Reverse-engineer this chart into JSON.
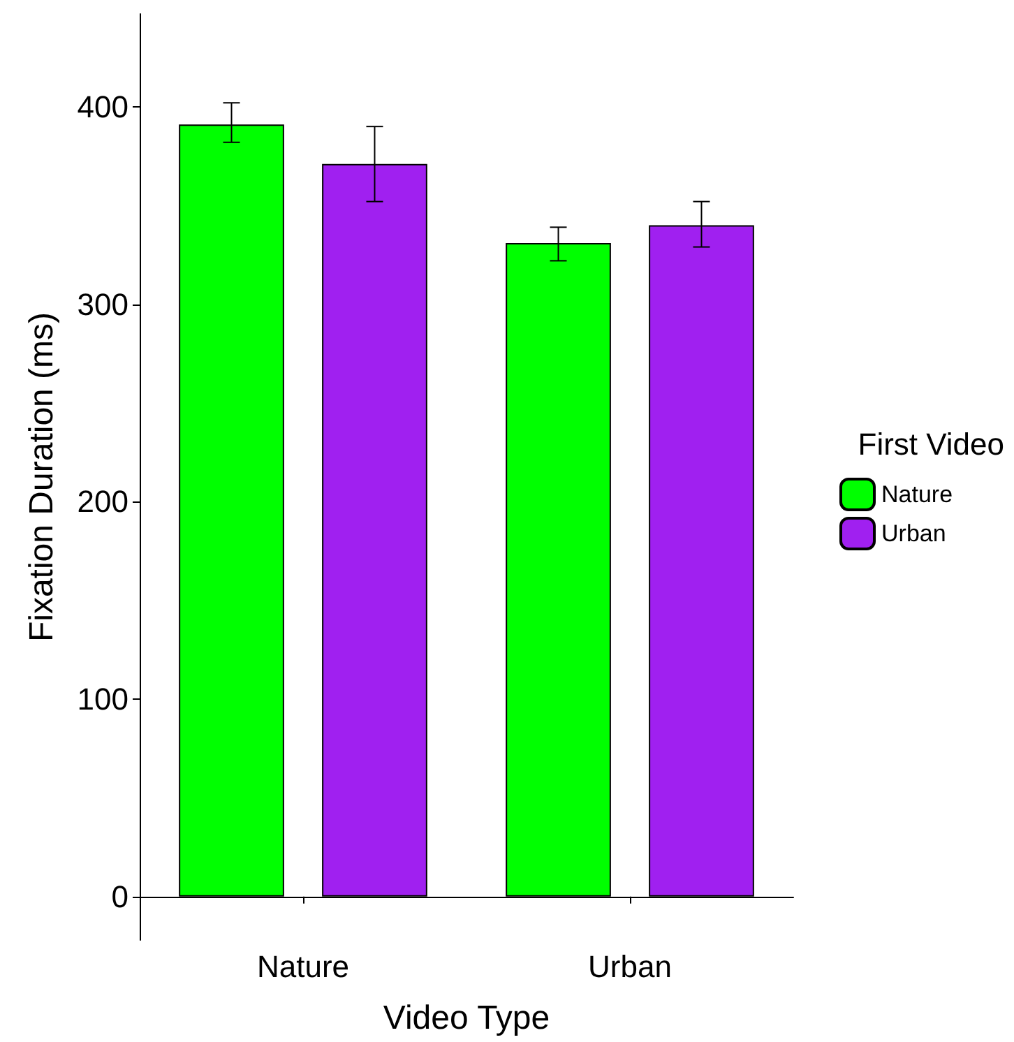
{
  "chart_data": {
    "type": "bar",
    "xlabel": "Video Type",
    "ylabel": "Fixation Duration (ms)",
    "legend_title": "First Video",
    "categories": [
      "Nature",
      "Urban"
    ],
    "series": [
      {
        "name": "Nature",
        "color": "#00ff00",
        "values": [
          391,
          331
        ],
        "errors": [
          [
            382,
            402
          ],
          [
            322,
            339
          ]
        ]
      },
      {
        "name": "Urban",
        "color": "#a020f0",
        "values": [
          371,
          340
        ],
        "errors": [
          [
            352,
            390
          ],
          [
            329,
            352
          ]
        ]
      }
    ],
    "ylim": [
      -22,
      447
    ],
    "yticks": [
      0,
      100,
      200,
      300,
      400
    ],
    "grid": false,
    "legend": "right"
  }
}
